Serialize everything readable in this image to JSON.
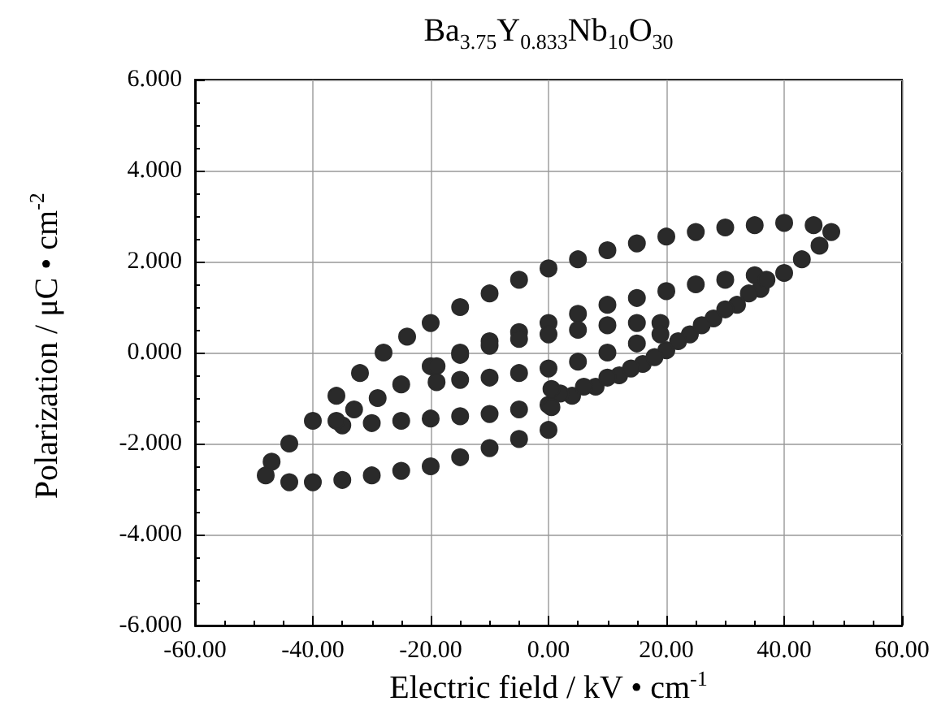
{
  "chart_data": {
    "type": "scatter",
    "title": "Ba$_{3.75}$Y$_{0.833}$Nb$_{10}$O$_{30}$",
    "xlabel": "Electric field / kV • cm$^{-1}$",
    "ylabel": "Polarization / μC • cm$^{-2}$",
    "xlim": [
      -60,
      60
    ],
    "ylim": [
      -6,
      6
    ],
    "xticks": [
      {
        "value": -60,
        "label": "-60.00"
      },
      {
        "value": -40,
        "label": "-40.00"
      },
      {
        "value": -20,
        "label": "-20.00"
      },
      {
        "value": 0,
        "label": "0.00"
      },
      {
        "value": 20,
        "label": "20.00"
      },
      {
        "value": 40,
        "label": "40.00"
      },
      {
        "value": 60,
        "label": "60.00"
      }
    ],
    "yticks": [
      {
        "value": -6,
        "label": "-6.000"
      },
      {
        "value": -4,
        "label": "-4.000"
      },
      {
        "value": -2,
        "label": "-2.000"
      },
      {
        "value": 0,
        "label": "0.000"
      },
      {
        "value": 2,
        "label": "2.000"
      },
      {
        "value": 4,
        "label": "4.000"
      },
      {
        "value": 6,
        "label": "6.000"
      }
    ],
    "grid": true,
    "marker": "circle",
    "series": [
      {
        "color": "#2a2a2a",
        "x": [
          0,
          -5,
          -10,
          -15,
          -20,
          -25,
          -30,
          -35,
          -40,
          -44,
          -48,
          -47,
          -44,
          -40,
          -36,
          -32,
          -28,
          -24,
          -20,
          -15,
          -10,
          -5,
          0,
          5,
          10,
          15,
          20,
          25,
          30,
          35,
          40,
          45,
          48,
          46,
          43,
          40,
          36,
          32,
          28,
          24,
          20,
          16,
          12,
          8,
          4,
          0,
          -5,
          -10,
          -15,
          -20,
          -25,
          -30,
          -35,
          -36,
          -33,
          -29,
          -25,
          -20,
          -15,
          -10,
          -5,
          0,
          5,
          10,
          15,
          20,
          25,
          30,
          35,
          37,
          34,
          30,
          26,
          22,
          18,
          14,
          10,
          6,
          2,
          0.5,
          0.5,
          -19,
          -19,
          -15,
          -10,
          -5,
          0,
          5,
          10,
          15,
          19,
          19,
          15,
          10,
          5,
          0,
          -5,
          -10,
          -15
        ],
        "values": [
          -1.7,
          -1.9,
          -2.1,
          -2.3,
          -2.5,
          -2.6,
          -2.7,
          -2.8,
          -2.85,
          -2.85,
          -2.7,
          -2.4,
          -2.0,
          -1.5,
          -0.95,
          -0.45,
          0.0,
          0.35,
          0.65,
          1.0,
          1.3,
          1.6,
          1.85,
          2.05,
          2.25,
          2.4,
          2.55,
          2.65,
          2.75,
          2.8,
          2.85,
          2.8,
          2.65,
          2.35,
          2.05,
          1.75,
          1.4,
          1.05,
          0.75,
          0.4,
          0.05,
          -0.25,
          -0.5,
          -0.75,
          -0.95,
          -1.15,
          -1.25,
          -1.35,
          -1.4,
          -1.45,
          -1.5,
          -1.55,
          -1.6,
          -1.5,
          -1.25,
          -1.0,
          -0.7,
          -0.3,
          0.0,
          0.25,
          0.45,
          0.65,
          0.85,
          1.05,
          1.2,
          1.35,
          1.5,
          1.6,
          1.7,
          1.6,
          1.3,
          0.95,
          0.6,
          0.25,
          -0.1,
          -0.35,
          -0.55,
          -0.75,
          -0.9,
          -0.8,
          -1.2,
          -0.65,
          -0.3,
          -0.05,
          0.15,
          0.3,
          0.4,
          0.5,
          0.6,
          0.65,
          0.65,
          0.4,
          0.2,
          0.0,
          -0.2,
          -0.35,
          -0.45,
          -0.55,
          -0.6
        ]
      }
    ]
  }
}
